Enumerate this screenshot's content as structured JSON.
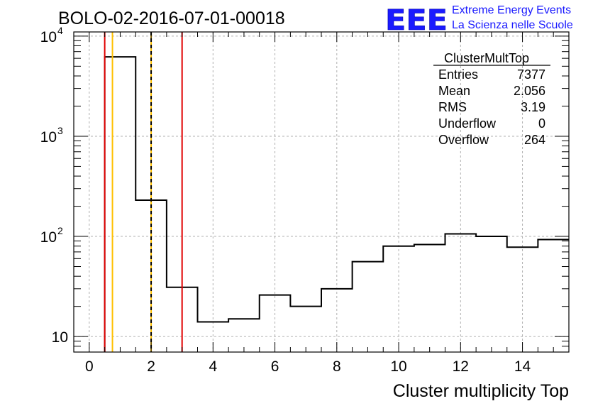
{
  "page": {
    "title": "BOLO-02-2016-07-01-00018"
  },
  "logo": {
    "mark": "EEE",
    "line1": "Extreme Energy Events",
    "line2": "La Scienza nelle Scuole",
    "color": "#1a1aff"
  },
  "stats": {
    "name": "ClusterMultTop",
    "rows": [
      {
        "label": "Entries",
        "value": "7377"
      },
      {
        "label": "Mean",
        "value": "2.056"
      },
      {
        "label": "RMS",
        "value": "3.19"
      },
      {
        "label": "Underflow",
        "value": "0"
      },
      {
        "label": "Overflow",
        "value": "264"
      }
    ]
  },
  "chart_data": {
    "type": "histogram",
    "xlabel": "Cluster multiplicity Top",
    "ylabel": "",
    "xlim": [
      -0.5,
      15.5
    ],
    "ylim": [
      7,
      11000
    ],
    "yscale": "log",
    "grid": true,
    "xticks": [
      "0",
      "2",
      "4",
      "6",
      "8",
      "10",
      "12",
      "14"
    ],
    "xtick_values": [
      0,
      2,
      4,
      6,
      8,
      10,
      12,
      14
    ],
    "yticks": [
      {
        "value": 10,
        "base": "10",
        "exp": ""
      },
      {
        "value": 100,
        "base": "10",
        "exp": "2"
      },
      {
        "value": 1000,
        "base": "10",
        "exp": "3"
      },
      {
        "value": 10000,
        "base": "10",
        "exp": "4"
      }
    ],
    "bins": [
      {
        "lo": 0.5,
        "hi": 1.5,
        "count": 6200
      },
      {
        "lo": 1.5,
        "hi": 2.5,
        "count": 230
      },
      {
        "lo": 2.5,
        "hi": 3.5,
        "count": 31
      },
      {
        "lo": 3.5,
        "hi": 4.5,
        "count": 14
      },
      {
        "lo": 4.5,
        "hi": 5.5,
        "count": 15
      },
      {
        "lo": 5.5,
        "hi": 6.5,
        "count": 26
      },
      {
        "lo": 6.5,
        "hi": 7.5,
        "count": 20
      },
      {
        "lo": 7.5,
        "hi": 8.5,
        "count": 30
      },
      {
        "lo": 8.5,
        "hi": 9.5,
        "count": 56
      },
      {
        "lo": 9.5,
        "hi": 10.5,
        "count": 80
      },
      {
        "lo": 10.5,
        "hi": 11.5,
        "count": 83
      },
      {
        "lo": 11.5,
        "hi": 12.5,
        "count": 106
      },
      {
        "lo": 12.5,
        "hi": 13.5,
        "count": 100
      },
      {
        "lo": 13.5,
        "hi": 14.5,
        "count": 78
      },
      {
        "lo": 14.5,
        "hi": 15.5,
        "count": 93
      }
    ],
    "markers": [
      {
        "x": 0.5,
        "color": "#e00000",
        "style": "solid"
      },
      {
        "x": 3.0,
        "color": "#e00000",
        "style": "solid"
      },
      {
        "x": 0.75,
        "color": "#ffc000",
        "style": "solid"
      },
      {
        "x": 2.0,
        "color": "#ffc000",
        "style": "solid"
      },
      {
        "x": 2.0,
        "color": "#000000",
        "style": "dashed"
      }
    ]
  }
}
